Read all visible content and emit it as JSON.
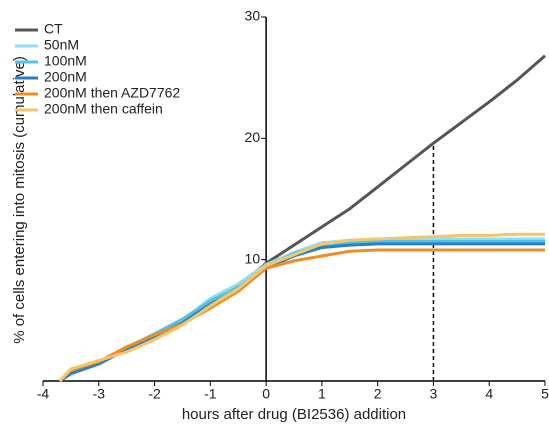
{
  "chart_data": {
    "type": "line",
    "x_label": "hours after drug (BI2536) addition",
    "y_label": "% of cells entering into mitosis  (cumulative)",
    "x": [
      -3.7,
      -3.5,
      -3,
      -2.5,
      -2,
      -1.5,
      -1,
      -0.5,
      0,
      0.5,
      1,
      1.5,
      2,
      2.5,
      3,
      3.5,
      4,
      4.5,
      5
    ],
    "series": [
      {
        "name": "CT",
        "color": "#555555",
        "values": [
          0,
          0.7,
          1.5,
          2.7,
          3.8,
          5.0,
          6.5,
          7.8,
          9.7,
          11.2,
          12.7,
          14.2,
          16.0,
          17.8,
          19.6,
          21.3,
          23.0,
          24.8,
          26.8
        ]
      },
      {
        "name": "50nM",
        "color": "#8fdff2",
        "values": [
          0,
          0.7,
          1.6,
          2.8,
          3.9,
          5.0,
          6.8,
          8.0,
          9.6,
          10.6,
          11.4,
          11.6,
          11.7,
          11.7,
          11.7,
          11.7,
          11.7,
          11.7,
          11.7
        ]
      },
      {
        "name": "100nM",
        "color": "#4fc3e8",
        "values": [
          0,
          0.6,
          1.5,
          2.7,
          3.9,
          5.1,
          6.6,
          7.7,
          9.4,
          10.5,
          11.2,
          11.4,
          11.5,
          11.5,
          11.5,
          11.5,
          11.5,
          11.5,
          11.5
        ]
      },
      {
        "name": "200nM",
        "color": "#2a7fc9",
        "values": [
          0,
          0.6,
          1.4,
          2.6,
          3.7,
          4.8,
          6.3,
          7.4,
          9.3,
          10.3,
          11.0,
          11.2,
          11.3,
          11.3,
          11.3,
          11.3,
          11.3,
          11.3,
          11.3
        ]
      },
      {
        "name": "200nM then AZD7762",
        "color": "#f28c1c",
        "values": [
          0,
          0.9,
          1.6,
          2.8,
          3.8,
          4.7,
          6.0,
          7.4,
          9.3,
          9.9,
          10.3,
          10.7,
          10.8,
          10.8,
          10.8,
          10.8,
          10.8,
          10.8,
          10.8
        ]
      },
      {
        "name": "200nM then caffein",
        "color": "#f5c56b",
        "values": [
          0,
          1.0,
          1.7,
          2.4,
          3.4,
          4.6,
          6.2,
          7.6,
          9.5,
          10.4,
          11.3,
          11.6,
          11.7,
          11.8,
          11.9,
          12.0,
          12.0,
          12.1,
          12.1
        ]
      }
    ],
    "reference_line": {
      "x": 3,
      "y": 19.6
    },
    "xlim": [
      -4,
      5
    ],
    "xticks": [
      -4,
      -3,
      -2,
      -1,
      0,
      1,
      2,
      3,
      4,
      5
    ],
    "ylim": [
      0,
      30
    ],
    "yticks": [
      10,
      20,
      30
    ]
  }
}
